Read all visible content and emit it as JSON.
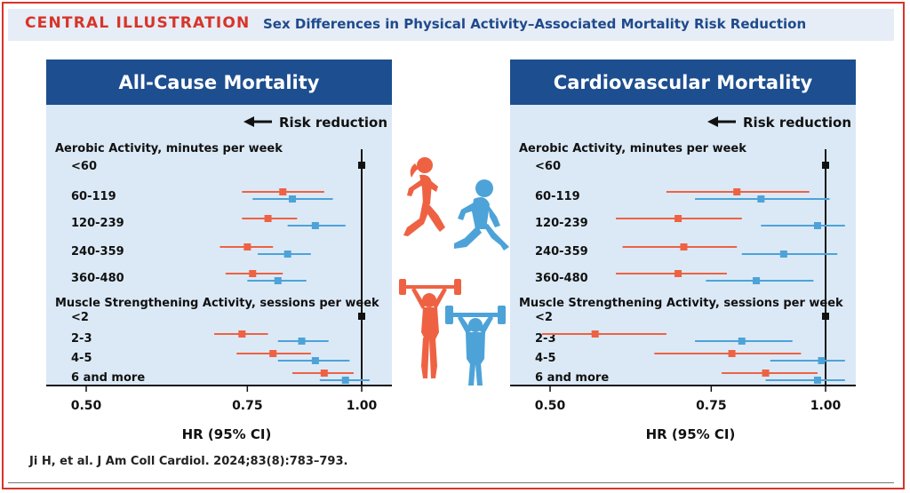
{
  "header": {
    "badge": "CENTRAL ILLUSTRATION",
    "title": "Sex Differences in Physical Activity–Associated Mortality Risk Reduction"
  },
  "colors": {
    "female": "#ee6243",
    "male": "#4da3d8",
    "panel_title_bg": "#1d4e8f",
    "panel_bg": "#dbe9f6",
    "accent": "#d8342a"
  },
  "icons": [
    "female-runner-icon",
    "male-runner-icon",
    "female-weightlifter-icon",
    "male-weightlifter-icon"
  ],
  "citation": "Ji H, et al. J Am Coll Cardiol. 2024;83(8):783–793.",
  "chart_data": [
    {
      "type": "forest",
      "title": "All-Cause Mortality",
      "direction_label": "Risk reduction",
      "xlabel": "HR (95% CI)",
      "xticks": [
        "0.50",
        "0.75",
        "1.00"
      ],
      "xlim": [
        0.46,
        1.04
      ],
      "scale": "log",
      "sections": [
        {
          "label": "Aerobic Activity, minutes per week",
          "rows": [
            {
              "label": "<60",
              "reference": true
            },
            {
              "label": "60-119",
              "female": [
                0.82,
                0.74,
                0.91
              ],
              "male": [
                0.84,
                0.76,
                0.93
              ]
            },
            {
              "label": "120-239",
              "female": [
                0.79,
                0.74,
                0.85
              ],
              "male": [
                0.89,
                0.83,
                0.96
              ]
            },
            {
              "label": "240-359",
              "female": [
                0.75,
                0.7,
                0.8
              ],
              "male": [
                0.83,
                0.77,
                0.88
              ]
            },
            {
              "label": "360-480",
              "female": [
                0.76,
                0.71,
                0.82
              ],
              "male": [
                0.81,
                0.75,
                0.87
              ]
            }
          ]
        },
        {
          "label": "Muscle Strengthening Activity, sessions per week",
          "rows": [
            {
              "label": "<2",
              "reference": true
            },
            {
              "label": "2-3",
              "female": [
                0.74,
                0.69,
                0.79
              ],
              "male": [
                0.86,
                0.81,
                0.92
              ]
            },
            {
              "label": "4-5",
              "female": [
                0.8,
                0.73,
                0.88
              ],
              "male": [
                0.89,
                0.81,
                0.97
              ]
            },
            {
              "label": "6 and more",
              "female": [
                0.91,
                0.84,
                0.98
              ],
              "male": [
                0.96,
                0.9,
                1.02
              ]
            }
          ]
        }
      ]
    },
    {
      "type": "forest",
      "title": "Cardiovascular Mortality",
      "direction_label": "Risk reduction",
      "xlabel": "HR (95% CI)",
      "xticks": [
        "0.50",
        "0.75",
        "1.00"
      ],
      "xlim": [
        0.46,
        1.04
      ],
      "scale": "log",
      "sections": [
        {
          "label": "Aerobic Activity, minutes per week",
          "rows": [
            {
              "label": "<60",
              "reference": true
            },
            {
              "label": "60-119",
              "female": [
                0.8,
                0.67,
                0.96
              ],
              "male": [
                0.85,
                0.72,
                1.01
              ]
            },
            {
              "label": "120-239",
              "female": [
                0.69,
                0.59,
                0.81
              ],
              "male": [
                0.98,
                0.85,
                1.05
              ]
            },
            {
              "label": "240-359",
              "female": [
                0.7,
                0.6,
                0.8
              ],
              "male": [
                0.9,
                0.81,
                1.03
              ]
            },
            {
              "label": "360-480",
              "female": [
                0.69,
                0.59,
                0.78
              ],
              "male": [
                0.84,
                0.74,
                0.97
              ]
            }
          ]
        },
        {
          "label": "Muscle Strengthening Activity, sessions per week",
          "rows": [
            {
              "label": "<2",
              "reference": true
            },
            {
              "label": "2-3",
              "female": [
                0.56,
                0.49,
                0.67
              ],
              "male": [
                0.81,
                0.72,
                0.92
              ]
            },
            {
              "label": "4-5",
              "female": [
                0.79,
                0.65,
                0.94
              ],
              "male": [
                0.99,
                0.87,
                1.05
              ]
            },
            {
              "label": "6 and more",
              "female": [
                0.86,
                0.77,
                0.98
              ],
              "male": [
                0.98,
                0.86,
                1.05
              ]
            }
          ]
        }
      ]
    }
  ]
}
